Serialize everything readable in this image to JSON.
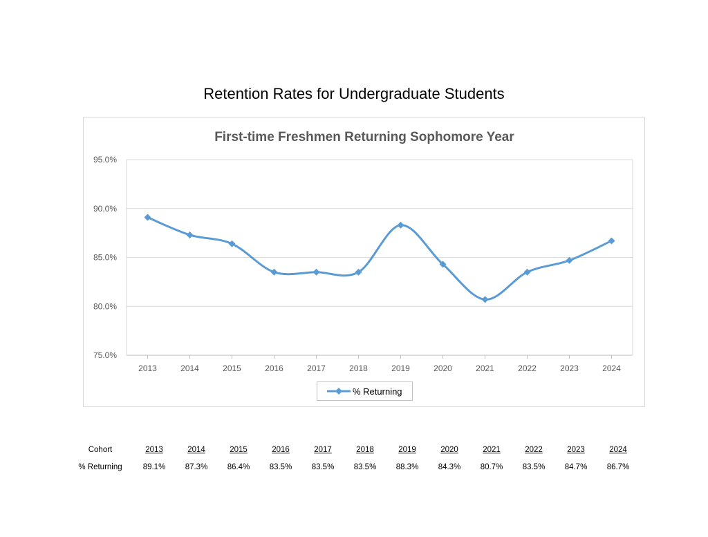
{
  "title": "Retention Rates for Undergraduate Students",
  "chart_data": {
    "type": "line",
    "title": "First-time Freshmen Returning Sophomore Year",
    "categories": [
      "2013",
      "2014",
      "2015",
      "2016",
      "2017",
      "2018",
      "2019",
      "2020",
      "2021",
      "2022",
      "2023",
      "2024"
    ],
    "series": [
      {
        "name": "% Returning",
        "values": [
          89.1,
          87.3,
          86.4,
          83.5,
          83.5,
          83.5,
          88.3,
          84.3,
          80.7,
          83.5,
          84.7,
          86.7
        ],
        "color": "#5b9bd5",
        "marker": "diamond",
        "smooth": true
      }
    ],
    "ylim": [
      75,
      95
    ],
    "yticks": [
      "75.0%",
      "80.0%",
      "85.0%",
      "90.0%",
      "95.0%"
    ],
    "grid": true,
    "legend": "bottom"
  },
  "table": {
    "row_labels": [
      "Cohort",
      "% Returning"
    ],
    "cohorts": [
      "2013",
      "2014",
      "2015",
      "2016",
      "2017",
      "2018",
      "2019",
      "2020",
      "2021",
      "2022",
      "2023",
      "2024"
    ],
    "values": [
      "89.1%",
      "87.3%",
      "86.4%",
      "83.5%",
      "83.5%",
      "83.5%",
      "88.3%",
      "84.3%",
      "80.7%",
      "83.5%",
      "84.7%",
      "86.7%"
    ]
  }
}
